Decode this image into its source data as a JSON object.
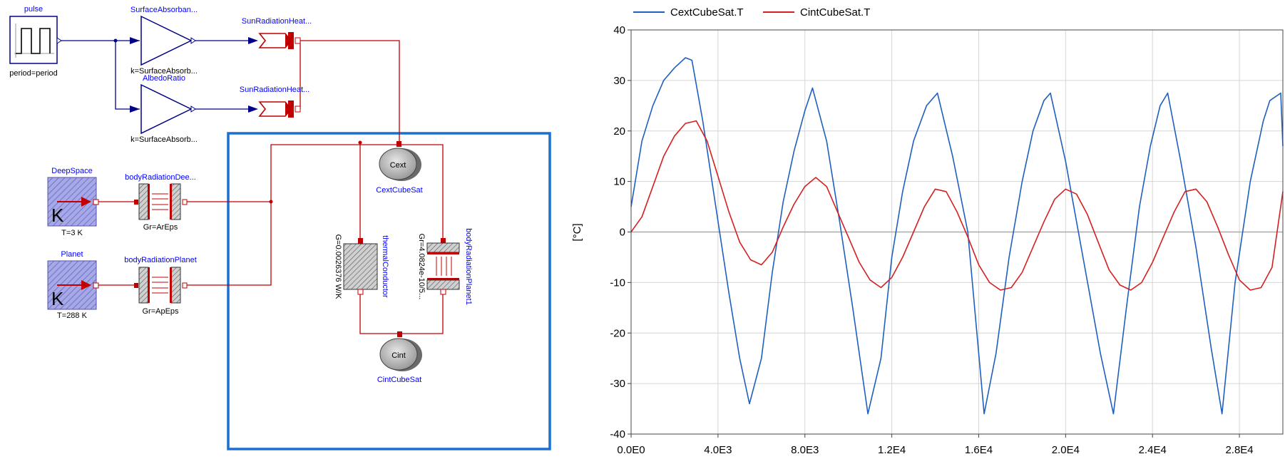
{
  "diagram": {
    "pulse": {
      "name": "pulse",
      "param": "period=period"
    },
    "gain_surface": {
      "name": "SurfaceAbsorban...",
      "param": "k=SurfaceAbsorb..."
    },
    "gain_albedo": {
      "name": "AlbedoRatio",
      "param": "k=SurfaceAbsorb..."
    },
    "sun_heat_1": {
      "name": "SunRadiationHeat..."
    },
    "sun_heat_2": {
      "name": "SunRadiationHeat..."
    },
    "deep_space": {
      "name": "DeepSpace",
      "param": "T=3 K",
      "glyph": "K"
    },
    "planet": {
      "name": "Planet",
      "param": "T=288 K",
      "glyph": "K"
    },
    "body_rad_deep": {
      "name": "bodyRadiationDee...",
      "param": "Gr=ArEps"
    },
    "body_rad_planet": {
      "name": "bodyRadiationPlanet",
      "param": "Gr=ApEps"
    },
    "cext": {
      "name": "CextCubeSat",
      "label": "Cext"
    },
    "cint": {
      "name": "CintCubeSat",
      "label": "Cint"
    },
    "thermal_conductor": {
      "name": "thermalConductor",
      "param": "G=0.0026376 W/K"
    },
    "body_rad_planet1": {
      "name": "bodyRadiationPlanet1",
      "param": "Gr=4.0824e-10/5..."
    }
  },
  "colors": {
    "cext": "#1f5fbf",
    "cint": "#d42020",
    "frame": "#1a6fd0",
    "wire_red": "#c00000",
    "wire_blue": "#00008b"
  },
  "chart_data": {
    "type": "line",
    "xlabel": "",
    "ylabel": "[°C]",
    "xlim": [
      0,
      30000
    ],
    "ylim": [
      -40,
      40
    ],
    "x_ticks": [
      0,
      4000,
      8000,
      12000,
      16000,
      20000,
      24000,
      28000
    ],
    "x_tick_labels": [
      "0.0E0",
      "4.0E3",
      "8.0E3",
      "1.2E4",
      "1.6E4",
      "2.0E4",
      "2.4E4",
      "2.8E4"
    ],
    "y_ticks": [
      -40,
      -30,
      -20,
      -10,
      0,
      10,
      20,
      30,
      40
    ],
    "y_tick_labels": [
      "-40",
      "-30",
      "-20",
      "-10",
      "0",
      "10",
      "20",
      "30",
      "40"
    ],
    "grid": true,
    "legend_position": "top-left",
    "series": [
      {
        "name": "CextCubeSat.T",
        "x": [
          0,
          500,
          1000,
          1500,
          2000,
          2500,
          2800,
          3300,
          3900,
          4500,
          5000,
          5450,
          6000,
          6500,
          7000,
          7500,
          8000,
          8350,
          9000,
          9600,
          10200,
          10900,
          11500,
          12000,
          12500,
          13000,
          13600,
          14100,
          14800,
          15500,
          16250,
          16800,
          17400,
          18000,
          18500,
          19000,
          19300,
          20000,
          20800,
          21600,
          22200,
          22800,
          23400,
          23900,
          24350,
          24700,
          25300,
          26000,
          26700,
          27200,
          27800,
          28500,
          29100,
          29400,
          29900,
          30000
        ],
        "values": [
          5,
          18,
          25,
          30,
          32.5,
          34.5,
          34,
          22,
          5,
          -12,
          -25,
          -34,
          -25,
          -8,
          6,
          16,
          24,
          28.5,
          18,
          2,
          -15,
          -36,
          -25,
          -5,
          8,
          18,
          25,
          27.5,
          15,
          0,
          -36,
          -24,
          -5,
          10,
          20,
          26,
          27.5,
          14,
          -5,
          -24,
          -36,
          -15,
          5,
          17,
          25,
          27.5,
          14,
          -3,
          -23,
          -36,
          -10,
          10,
          22,
          26,
          27.5,
          17
        ]
      },
      {
        "name": "CintCubeSat.T",
        "x": [
          0,
          500,
          1000,
          1500,
          2000,
          2500,
          3000,
          3500,
          4000,
          4500,
          5000,
          5500,
          6000,
          6500,
          7000,
          7500,
          8000,
          8500,
          9000,
          9500,
          10000,
          10500,
          11000,
          11500,
          12000,
          12500,
          13000,
          13500,
          14000,
          14500,
          15000,
          15500,
          16000,
          16500,
          17000,
          17500,
          18000,
          18500,
          19000,
          19500,
          20000,
          20500,
          21000,
          21500,
          22000,
          22500,
          23000,
          23500,
          24000,
          24500,
          25000,
          25500,
          26000,
          26500,
          27000,
          27500,
          28000,
          28500,
          29000,
          29500,
          30000
        ],
        "values": [
          0,
          3,
          9,
          15,
          19,
          21.5,
          22,
          18,
          11,
          4,
          -2,
          -5.5,
          -6.5,
          -4,
          1,
          5.5,
          9,
          10.8,
          9,
          4,
          -1,
          -6,
          -9.5,
          -11,
          -9,
          -5,
          0,
          5,
          8.5,
          8,
          4,
          -1,
          -6.5,
          -10,
          -11.5,
          -11,
          -8,
          -3,
          2,
          6.5,
          8.5,
          7.5,
          3.5,
          -2,
          -7.5,
          -10.5,
          -11.5,
          -10,
          -6,
          -1,
          4,
          8,
          8.5,
          6,
          1,
          -4.5,
          -9.5,
          -11.5,
          -11,
          -7,
          8
        ]
      }
    ]
  }
}
